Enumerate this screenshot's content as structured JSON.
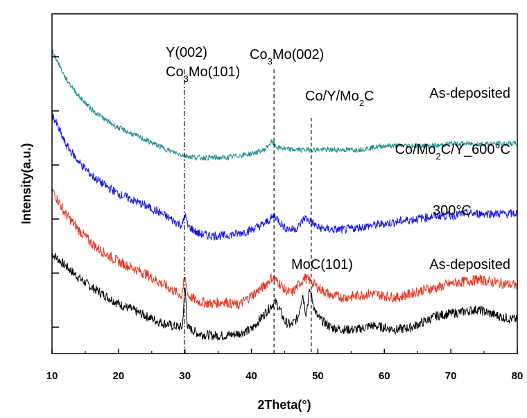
{
  "chart_data": {
    "type": "line",
    "xlabel": "2Theta(°)",
    "ylabel": "Intensity(a.u.)",
    "xlim": [
      10,
      80
    ],
    "xticks": [
      "10",
      "20",
      "30",
      "40",
      "50",
      "60",
      "70",
      "80"
    ],
    "y_ticks_labeled": false,
    "grid": false,
    "legend": "none",
    "series": [
      {
        "name": "As-deposited",
        "color": "#000000",
        "points": [
          [
            10,
            50
          ],
          [
            12,
            44
          ],
          [
            14,
            38
          ],
          [
            16,
            33
          ],
          [
            18,
            29
          ],
          [
            20,
            25
          ],
          [
            22,
            22
          ],
          [
            24,
            19
          ],
          [
            26,
            16
          ],
          [
            28,
            14
          ],
          [
            29.6,
            13
          ],
          [
            30.0,
            34
          ],
          [
            30.4,
            13
          ],
          [
            32,
            10
          ],
          [
            34,
            9
          ],
          [
            36,
            9
          ],
          [
            38,
            10
          ],
          [
            40,
            12
          ],
          [
            41,
            16
          ],
          [
            42,
            20
          ],
          [
            43,
            24
          ],
          [
            43.5,
            26
          ],
          [
            44,
            24
          ],
          [
            45,
            16
          ],
          [
            46,
            14
          ],
          [
            47,
            18
          ],
          [
            47.7,
            30
          ],
          [
            48.2,
            20
          ],
          [
            48.8,
            32
          ],
          [
            49.5,
            22
          ],
          [
            50,
            18
          ],
          [
            52,
            13
          ],
          [
            54,
            12
          ],
          [
            56,
            12
          ],
          [
            58,
            14
          ],
          [
            60,
            13
          ],
          [
            62,
            12
          ],
          [
            64,
            13
          ],
          [
            66,
            16
          ],
          [
            68,
            19
          ],
          [
            70,
            20
          ],
          [
            72,
            21
          ],
          [
            74,
            22
          ],
          [
            76,
            20
          ],
          [
            78,
            18
          ],
          [
            80,
            17
          ]
        ]
      },
      {
        "name": "300°C",
        "color": "#e8321e",
        "points": [
          [
            10,
            82
          ],
          [
            12,
            70
          ],
          [
            14,
            62
          ],
          [
            16,
            55
          ],
          [
            18,
            50
          ],
          [
            20,
            46
          ],
          [
            22,
            43
          ],
          [
            24,
            40
          ],
          [
            26,
            36
          ],
          [
            28,
            32
          ],
          [
            29.5,
            29
          ],
          [
            30.0,
            38
          ],
          [
            30.5,
            29
          ],
          [
            32,
            26
          ],
          [
            34,
            25
          ],
          [
            36,
            26
          ],
          [
            38,
            24
          ],
          [
            40,
            29
          ],
          [
            42,
            34
          ],
          [
            43,
            38
          ],
          [
            44,
            36
          ],
          [
            45,
            32
          ],
          [
            46,
            30
          ],
          [
            47,
            34
          ],
          [
            48,
            38
          ],
          [
            49,
            36
          ],
          [
            50,
            33
          ],
          [
            52,
            29
          ],
          [
            54,
            28
          ],
          [
            56,
            29
          ],
          [
            58,
            30
          ],
          [
            60,
            29
          ],
          [
            62,
            28
          ],
          [
            64,
            30
          ],
          [
            66,
            32
          ],
          [
            68,
            33
          ],
          [
            70,
            35
          ],
          [
            72,
            36
          ],
          [
            74,
            37
          ],
          [
            76,
            36
          ],
          [
            78,
            35
          ],
          [
            80,
            34
          ]
        ]
      },
      {
        "name": "Co/Mo₂C/Y_600°C",
        "color": "#1414e6",
        "points": [
          [
            10,
            120
          ],
          [
            12,
            105
          ],
          [
            14,
            96
          ],
          [
            16,
            89
          ],
          [
            18,
            84
          ],
          [
            20,
            80
          ],
          [
            22,
            77
          ],
          [
            24,
            74
          ],
          [
            26,
            71
          ],
          [
            28,
            67
          ],
          [
            29.6,
            64
          ],
          [
            30.0,
            70
          ],
          [
            30.4,
            64
          ],
          [
            32,
            60
          ],
          [
            34,
            59
          ],
          [
            36,
            59
          ],
          [
            38,
            60
          ],
          [
            40,
            62
          ],
          [
            42,
            65
          ],
          [
            43.5,
            69
          ],
          [
            45,
            63
          ],
          [
            46,
            62
          ],
          [
            47,
            63
          ],
          [
            48,
            68
          ],
          [
            49,
            66
          ],
          [
            50,
            63
          ],
          [
            52,
            62
          ],
          [
            54,
            62
          ],
          [
            56,
            63
          ],
          [
            58,
            64
          ],
          [
            60,
            65
          ],
          [
            62,
            66
          ],
          [
            64,
            67
          ],
          [
            66,
            68
          ],
          [
            68,
            69
          ],
          [
            70,
            69
          ],
          [
            72,
            70
          ],
          [
            74,
            70
          ],
          [
            76,
            70
          ],
          [
            78,
            70
          ],
          [
            80,
            70
          ]
        ]
      },
      {
        "name": "As-deposited",
        "color": "#1a8c8c",
        "points": [
          [
            10,
            152
          ],
          [
            12,
            138
          ],
          [
            14,
            129
          ],
          [
            16,
            122
          ],
          [
            18,
            117
          ],
          [
            20,
            113
          ],
          [
            22,
            110
          ],
          [
            24,
            107
          ],
          [
            26,
            104
          ],
          [
            28,
            101
          ],
          [
            30,
            99
          ],
          [
            32,
            98
          ],
          [
            34,
            98
          ],
          [
            36,
            98
          ],
          [
            38,
            99
          ],
          [
            40,
            100
          ],
          [
            42,
            102
          ],
          [
            43,
            106
          ],
          [
            44,
            103
          ],
          [
            46,
            102
          ],
          [
            48,
            102
          ],
          [
            50,
            102
          ],
          [
            52,
            102
          ],
          [
            54,
            102
          ],
          [
            56,
            102
          ],
          [
            58,
            103
          ],
          [
            60,
            104
          ],
          [
            62,
            104
          ],
          [
            64,
            104
          ],
          [
            66,
            104
          ],
          [
            68,
            104
          ],
          [
            70,
            105
          ],
          [
            72,
            105
          ],
          [
            74,
            105
          ],
          [
            76,
            105
          ],
          [
            78,
            105
          ],
          [
            80,
            105
          ]
        ]
      }
    ],
    "reference_lines": [
      {
        "x": 29.9,
        "style": "dash-dot"
      },
      {
        "x": 43.4,
        "style": "dashed"
      },
      {
        "x": 49.0,
        "style": "dashed"
      }
    ],
    "annotations": [
      {
        "text": "Y(002)",
        "base": "Y(002)"
      },
      {
        "text": "Co3Mo(101)",
        "base1": "Co",
        "sub": "3",
        "base2": "Mo(101)"
      },
      {
        "text": "Co3Mo(002)",
        "base1": "Co",
        "sub": "3",
        "base2": "Mo(002)"
      },
      {
        "text": "Co/Y/Mo2C",
        "base1": "Co/Y/Mo",
        "sub": "2",
        "base2": "C"
      },
      {
        "text": "As-deposited",
        "base": "As-deposited"
      },
      {
        "text": "Co/Mo2C/Y_600°C",
        "base1": "Co/Mo",
        "sub": "2",
        "base2": "C/Y_600°C"
      },
      {
        "text": "300°C",
        "base": "300°C"
      },
      {
        "text": "MoC(101)",
        "base": "MoC(101)"
      },
      {
        "text": "As-deposited",
        "base": "As-deposited"
      }
    ]
  }
}
